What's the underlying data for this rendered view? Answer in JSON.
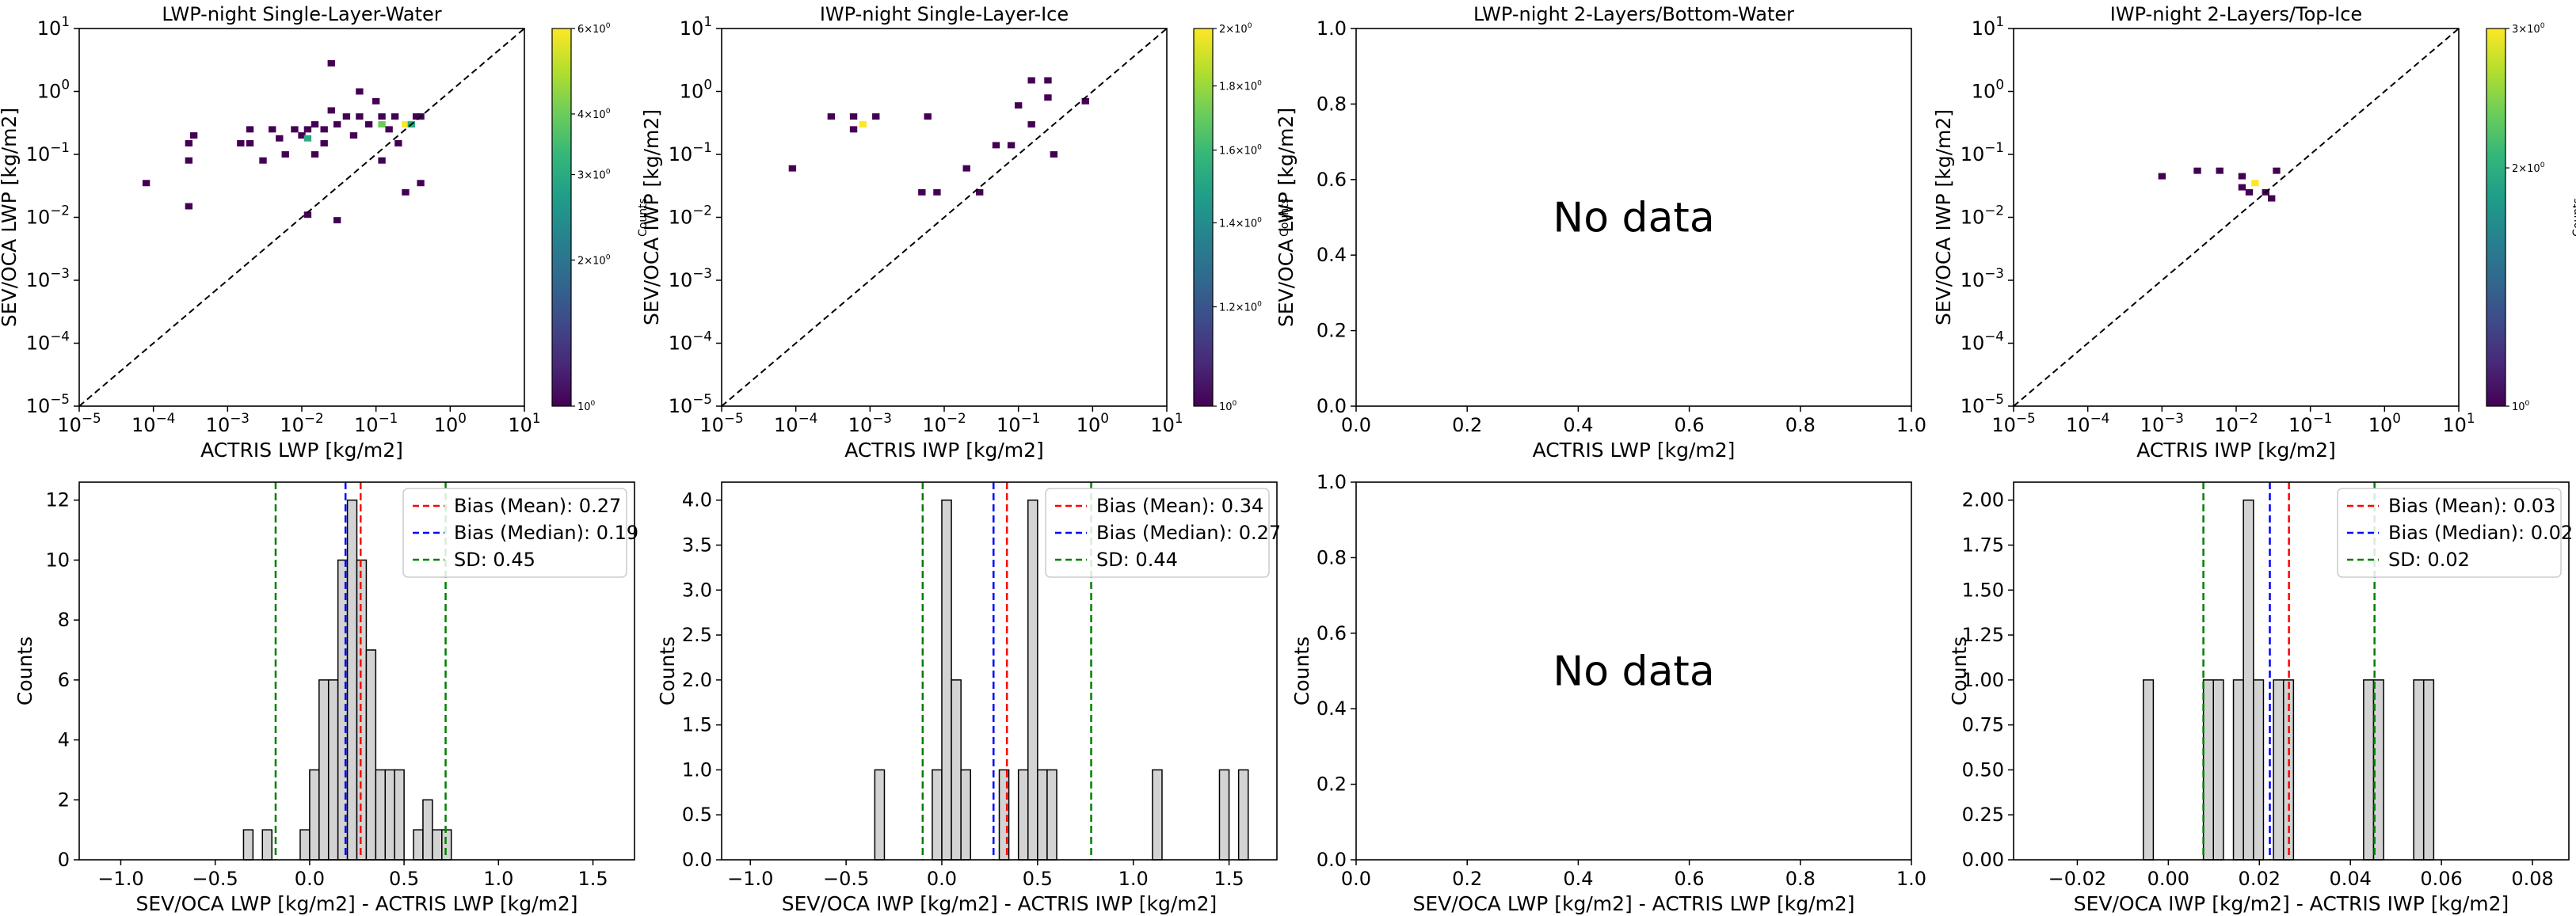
{
  "chart_data": [
    {
      "type": "heatmap",
      "title": "LWP-night Single-Layer-Water",
      "xlabel": "ACTRIS LWP [kg/m2]",
      "ylabel": "SEV/OCA LWP [kg/m2]",
      "xscale": "log",
      "yscale": "log",
      "xlim": [
        1e-05,
        10
      ],
      "ylim": [
        1e-05,
        10
      ],
      "xticks": [
        -5,
        -4,
        -3,
        -2,
        -1,
        0,
        1
      ],
      "xtick_labels": [
        "10^-5",
        "10^-4",
        "10^-3",
        "10^-2",
        "10^-1",
        "10^0",
        "10^1"
      ],
      "yticks": [
        -5,
        -4,
        -3,
        -2,
        -1,
        0,
        1
      ],
      "ytick_labels": [
        "10^-5",
        "10^-4",
        "10^-3",
        "10^-2",
        "10^-1",
        "10^0",
        "10^1"
      ],
      "diagonal": "1:1 dashed",
      "colorbar": {
        "label": "Counts",
        "scale": "log",
        "range": [
          1,
          6
        ],
        "ticks": [
          1,
          2,
          3,
          4,
          6
        ],
        "tick_labels": [
          "10^0",
          "2×10^0",
          "3×10^0",
          "4×10^0",
          "6×10^0"
        ]
      },
      "points": [
        {
          "x": 8e-05,
          "y": 0.035,
          "c": 1
        },
        {
          "x": 0.0003,
          "y": 0.015,
          "c": 1
        },
        {
          "x": 0.0003,
          "y": 0.08,
          "c": 1
        },
        {
          "x": 0.0003,
          "y": 0.15,
          "c": 1
        },
        {
          "x": 0.00035,
          "y": 0.2,
          "c": 1
        },
        {
          "x": 0.0015,
          "y": 0.15,
          "c": 1
        },
        {
          "x": 0.002,
          "y": 0.25,
          "c": 1
        },
        {
          "x": 0.002,
          "y": 0.15,
          "c": 1
        },
        {
          "x": 0.003,
          "y": 0.08,
          "c": 1
        },
        {
          "x": 0.004,
          "y": 0.25,
          "c": 1
        },
        {
          "x": 0.005,
          "y": 0.18,
          "c": 1
        },
        {
          "x": 0.006,
          "y": 0.1,
          "c": 1
        },
        {
          "x": 0.008,
          "y": 0.25,
          "c": 1
        },
        {
          "x": 0.01,
          "y": 0.2,
          "c": 1
        },
        {
          "x": 0.012,
          "y": 0.25,
          "c": 1
        },
        {
          "x": 0.012,
          "y": 0.18,
          "c": 3
        },
        {
          "x": 0.015,
          "y": 0.3,
          "c": 1
        },
        {
          "x": 0.012,
          "y": 0.011,
          "c": 1
        },
        {
          "x": 0.015,
          "y": 0.1,
          "c": 1
        },
        {
          "x": 0.02,
          "y": 0.25,
          "c": 1
        },
        {
          "x": 0.02,
          "y": 0.15,
          "c": 1
        },
        {
          "x": 0.025,
          "y": 2.8,
          "c": 1
        },
        {
          "x": 0.025,
          "y": 0.5,
          "c": 1
        },
        {
          "x": 0.03,
          "y": 0.009,
          "c": 1
        },
        {
          "x": 0.03,
          "y": 0.3,
          "c": 1
        },
        {
          "x": 0.04,
          "y": 0.4,
          "c": 1
        },
        {
          "x": 0.05,
          "y": 0.2,
          "c": 1
        },
        {
          "x": 0.06,
          "y": 0.4,
          "c": 1
        },
        {
          "x": 0.06,
          "y": 1.0,
          "c": 1
        },
        {
          "x": 0.08,
          "y": 0.3,
          "c": 1
        },
        {
          "x": 0.1,
          "y": 0.7,
          "c": 1
        },
        {
          "x": 0.12,
          "y": 0.3,
          "c": 4
        },
        {
          "x": 0.12,
          "y": 0.08,
          "c": 1
        },
        {
          "x": 0.12,
          "y": 0.4,
          "c": 1
        },
        {
          "x": 0.15,
          "y": 0.25,
          "c": 1
        },
        {
          "x": 0.18,
          "y": 0.4,
          "c": 1
        },
        {
          "x": 0.2,
          "y": 0.15,
          "c": 1
        },
        {
          "x": 0.25,
          "y": 0.3,
          "c": 6
        },
        {
          "x": 0.3,
          "y": 0.3,
          "c": 3
        },
        {
          "x": 0.35,
          "y": 0.4,
          "c": 1
        },
        {
          "x": 0.4,
          "y": 0.4,
          "c": 1
        },
        {
          "x": 0.4,
          "y": 0.035,
          "c": 1
        },
        {
          "x": 0.25,
          "y": 0.025,
          "c": 1
        }
      ]
    },
    {
      "type": "heatmap",
      "title": "IWP-night Single-Layer-Ice",
      "xlabel": "ACTRIS IWP [kg/m2]",
      "ylabel": "SEV/OCA IWP [kg/m2]",
      "xscale": "log",
      "yscale": "log",
      "xlim": [
        1e-05,
        10
      ],
      "ylim": [
        1e-05,
        10
      ],
      "xticks": [
        -5,
        -4,
        -3,
        -2,
        -1,
        0,
        1
      ],
      "xtick_labels": [
        "10^-5",
        "10^-4",
        "10^-3",
        "10^-2",
        "10^-1",
        "10^0",
        "10^1"
      ],
      "yticks": [
        -5,
        -4,
        -3,
        -2,
        -1,
        0,
        1
      ],
      "ytick_labels": [
        "10^-5",
        "10^-4",
        "10^-3",
        "10^-2",
        "10^-1",
        "10^0",
        "10^1"
      ],
      "diagonal": "1:1 dashed",
      "colorbar": {
        "label": "Counts",
        "scale": "log",
        "range": [
          1,
          2
        ],
        "ticks": [
          1,
          1.2,
          1.4,
          1.6,
          1.8,
          2
        ],
        "tick_labels": [
          "10^0",
          "1.2×10^0",
          "1.4×10^0",
          "1.6×10^0",
          "1.8×10^0",
          "2×10^0"
        ]
      },
      "points": [
        {
          "x": 9e-05,
          "y": 0.06,
          "c": 1
        },
        {
          "x": 0.0003,
          "y": 0.4,
          "c": 1
        },
        {
          "x": 0.0006,
          "y": 0.25,
          "c": 1
        },
        {
          "x": 0.0006,
          "y": 0.4,
          "c": 1
        },
        {
          "x": 0.0008,
          "y": 0.3,
          "c": 2
        },
        {
          "x": 0.0012,
          "y": 0.4,
          "c": 1
        },
        {
          "x": 0.005,
          "y": 0.025,
          "c": 1
        },
        {
          "x": 0.006,
          "y": 0.4,
          "c": 1
        },
        {
          "x": 0.008,
          "y": 0.025,
          "c": 1
        },
        {
          "x": 0.02,
          "y": 0.06,
          "c": 1
        },
        {
          "x": 0.03,
          "y": 0.025,
          "c": 1
        },
        {
          "x": 0.05,
          "y": 0.14,
          "c": 1
        },
        {
          "x": 0.08,
          "y": 0.14,
          "c": 1
        },
        {
          "x": 0.1,
          "y": 0.6,
          "c": 1
        },
        {
          "x": 0.15,
          "y": 1.5,
          "c": 1
        },
        {
          "x": 0.15,
          "y": 0.3,
          "c": 1
        },
        {
          "x": 0.25,
          "y": 1.5,
          "c": 1
        },
        {
          "x": 0.25,
          "y": 0.8,
          "c": 1
        },
        {
          "x": 0.3,
          "y": 0.1,
          "c": 1
        },
        {
          "x": 0.8,
          "y": 0.7,
          "c": 1
        }
      ]
    },
    {
      "type": "scatter",
      "title": "LWP-night 2-Layers/Bottom-Water",
      "xlabel": "ACTRIS LWP [kg/m2]",
      "ylabel": "SEV/OCA LWP [kg/m2]",
      "xlim": [
        0,
        1
      ],
      "ylim": [
        0,
        1
      ],
      "xticks": [
        0,
        0.2,
        0.4,
        0.6,
        0.8,
        1
      ],
      "xtick_labels": [
        "0.0",
        "0.2",
        "0.4",
        "0.6",
        "0.8",
        "1.0"
      ],
      "yticks": [
        0,
        0.2,
        0.4,
        0.6,
        0.8,
        1
      ],
      "ytick_labels": [
        "0.0",
        "0.2",
        "0.4",
        "0.6",
        "0.8",
        "1.0"
      ],
      "annotation": "No data"
    },
    {
      "type": "heatmap",
      "title": "IWP-night 2-Layers/Top-Ice",
      "xlabel": "ACTRIS IWP [kg/m2]",
      "ylabel": "SEV/OCA IWP [kg/m2]",
      "xscale": "log",
      "yscale": "log",
      "xlim": [
        1e-05,
        10
      ],
      "ylim": [
        1e-05,
        10
      ],
      "xticks": [
        -5,
        -4,
        -3,
        -2,
        -1,
        0,
        1
      ],
      "xtick_labels": [
        "10^-5",
        "10^-4",
        "10^-3",
        "10^-2",
        "10^-1",
        "10^0",
        "10^1"
      ],
      "yticks": [
        -5,
        -4,
        -3,
        -2,
        -1,
        0,
        1
      ],
      "ytick_labels": [
        "10^-5",
        "10^-4",
        "10^-3",
        "10^-2",
        "10^-1",
        "10^0",
        "10^1"
      ],
      "diagonal": "1:1 dashed",
      "colorbar": {
        "label": "Counts",
        "scale": "log",
        "range": [
          1,
          3
        ],
        "ticks": [
          1,
          2,
          3
        ],
        "tick_labels": [
          "10^0",
          "2×10^0",
          "3×10^0"
        ]
      },
      "points": [
        {
          "x": 0.001,
          "y": 0.045,
          "c": 1
        },
        {
          "x": 0.003,
          "y": 0.055,
          "c": 1
        },
        {
          "x": 0.006,
          "y": 0.055,
          "c": 1
        },
        {
          "x": 0.012,
          "y": 0.045,
          "c": 1
        },
        {
          "x": 0.012,
          "y": 0.03,
          "c": 1
        },
        {
          "x": 0.015,
          "y": 0.025,
          "c": 1
        },
        {
          "x": 0.018,
          "y": 0.035,
          "c": 3
        },
        {
          "x": 0.025,
          "y": 0.025,
          "c": 1
        },
        {
          "x": 0.03,
          "y": 0.02,
          "c": 1
        },
        {
          "x": 0.035,
          "y": 0.055,
          "c": 1
        }
      ]
    },
    {
      "type": "bar",
      "subtype": "histogram",
      "xlabel": "SEV/OCA LWP [kg/m2] - ACTRIS LWP [kg/m2]",
      "ylabel": "Counts",
      "xlim": [
        -1.22,
        1.72
      ],
      "ylim": [
        0,
        12.6
      ],
      "xticks": [
        -1,
        -0.5,
        0,
        0.5,
        1,
        1.5
      ],
      "xtick_labels": [
        "−1.0",
        "−0.5",
        "0.0",
        "0.5",
        "1.0",
        "1.5"
      ],
      "yticks": [
        0,
        2,
        4,
        6,
        8,
        10,
        12
      ],
      "ytick_labels": [
        "0",
        "2",
        "4",
        "6",
        "8",
        "10",
        "12"
      ],
      "bin_start": -1.1,
      "bin_width": 0.05,
      "counts": [
        0,
        0,
        0,
        0,
        0,
        0,
        0,
        0,
        0,
        0,
        0,
        0,
        0,
        0,
        0,
        1,
        0,
        1,
        0,
        0,
        0,
        1,
        3,
        6,
        6,
        10,
        12,
        10,
        7,
        3,
        3,
        3,
        0,
        1,
        2,
        1,
        1,
        0,
        0,
        0,
        0,
        0,
        0,
        0,
        0,
        0,
        0,
        0,
        0,
        0,
        0,
        0,
        0,
        0,
        0,
        0
      ],
      "vlines": [
        {
          "label": "Bias (Mean): 0.27",
          "x": 0.27,
          "color": "#ff0000"
        },
        {
          "label": "Bias (Median): 0.19",
          "x": 0.19,
          "color": "#0000ff"
        },
        {
          "label": "SD: 0.45",
          "x": -0.18,
          "color": "#008000"
        },
        {
          "label": "",
          "x": 0.72,
          "color": "#008000"
        }
      ],
      "legend": {
        "position": "top-right",
        "entries": [
          "Bias (Mean): 0.27",
          "Bias (Median): 0.19",
          "SD: 0.45"
        ]
      }
    },
    {
      "type": "bar",
      "subtype": "histogram",
      "xlabel": "SEV/OCA IWP [kg/m2] - ACTRIS IWP [kg/m2]",
      "ylabel": "Counts",
      "xlim": [
        -1.15,
        1.75
      ],
      "ylim": [
        0,
        4.2
      ],
      "xticks": [
        -1,
        -0.5,
        0,
        0.5,
        1,
        1.5
      ],
      "xtick_labels": [
        "−1.0",
        "−0.5",
        "0.0",
        "0.5",
        "1.0",
        "1.5"
      ],
      "yticks": [
        0,
        0.5,
        1,
        1.5,
        2,
        2.5,
        3,
        3.5,
        4
      ],
      "ytick_labels": [
        "0.0",
        "0.5",
        "1.0",
        "1.5",
        "2.0",
        "2.5",
        "3.0",
        "3.5",
        "4.0"
      ],
      "bin_start": -0.35,
      "bin_width": 0.05,
      "counts": [
        1,
        0,
        0,
        0,
        0,
        0,
        1,
        4,
        2,
        1,
        0,
        0,
        0,
        1,
        0,
        1,
        4,
        1,
        1,
        0,
        0,
        0,
        0,
        0,
        0,
        0,
        0,
        0,
        0,
        1,
        0,
        0,
        0,
        0,
        0,
        0,
        1,
        0,
        1
      ],
      "vlines": [
        {
          "label": "Bias (Mean): 0.34",
          "x": 0.34,
          "color": "#ff0000"
        },
        {
          "label": "Bias (Median): 0.27",
          "x": 0.27,
          "color": "#0000ff"
        },
        {
          "label": "SD: 0.44",
          "x": -0.1,
          "color": "#008000"
        },
        {
          "label": "",
          "x": 0.78,
          "color": "#008000"
        }
      ],
      "legend": {
        "position": "top-right",
        "entries": [
          "Bias (Mean): 0.34",
          "Bias (Median): 0.27",
          "SD: 0.44"
        ]
      }
    },
    {
      "type": "bar",
      "subtype": "histogram",
      "xlabel": "SEV/OCA LWP [kg/m2] - ACTRIS LWP [kg/m2]",
      "ylabel": "Counts",
      "xlim": [
        0,
        1
      ],
      "ylim": [
        0,
        1
      ],
      "xticks": [
        0,
        0.2,
        0.4,
        0.6,
        0.8,
        1
      ],
      "xtick_labels": [
        "0.0",
        "0.2",
        "0.4",
        "0.6",
        "0.8",
        "1.0"
      ],
      "yticks": [
        0,
        0.2,
        0.4,
        0.6,
        0.8,
        1
      ],
      "ytick_labels": [
        "0.0",
        "0.2",
        "0.4",
        "0.6",
        "0.8",
        "1.0"
      ],
      "counts": [],
      "annotation": "No data"
    },
    {
      "type": "bar",
      "subtype": "histogram",
      "xlabel": "SEV/OCA IWP [kg/m2] - ACTRIS IWP [kg/m2]",
      "ylabel": "Counts",
      "xlim": [
        -0.034,
        0.088
      ],
      "ylim": [
        0,
        2.1
      ],
      "xticks": [
        -0.02,
        0,
        0.02,
        0.04,
        0.06,
        0.08
      ],
      "xtick_labels": [
        "−0.02",
        "0.00",
        "0.02",
        "0.04",
        "0.06",
        "0.08"
      ],
      "yticks": [
        0,
        0.25,
        0.5,
        0.75,
        1,
        1.25,
        1.5,
        1.75,
        2
      ],
      "ytick_labels": [
        "0.00",
        "0.25",
        "0.50",
        "0.75",
        "1.00",
        "1.25",
        "1.50",
        "1.75",
        "2.00"
      ],
      "bin_start": -0.0055,
      "bin_width": 0.0022,
      "counts": [
        1,
        0,
        0,
        0,
        0,
        0,
        1,
        1,
        0,
        1,
        2,
        1,
        0,
        1,
        1,
        0,
        0,
        0,
        0,
        0,
        0,
        0,
        1,
        1,
        0,
        0,
        0,
        1,
        1
      ],
      "vlines": [
        {
          "label": "Bias (Mean): 0.03",
          "x": 0.0265,
          "color": "#ff0000"
        },
        {
          "label": "Bias (Median): 0.02",
          "x": 0.0223,
          "color": "#0000ff"
        },
        {
          "label": "SD: 0.02",
          "x": 0.0077,
          "color": "#008000"
        },
        {
          "label": "",
          "x": 0.0453,
          "color": "#008000"
        }
      ],
      "legend": {
        "position": "top-right",
        "entries": [
          "Bias (Mean): 0.03",
          "Bias (Median): 0.02",
          "SD: 0.02"
        ]
      }
    }
  ]
}
